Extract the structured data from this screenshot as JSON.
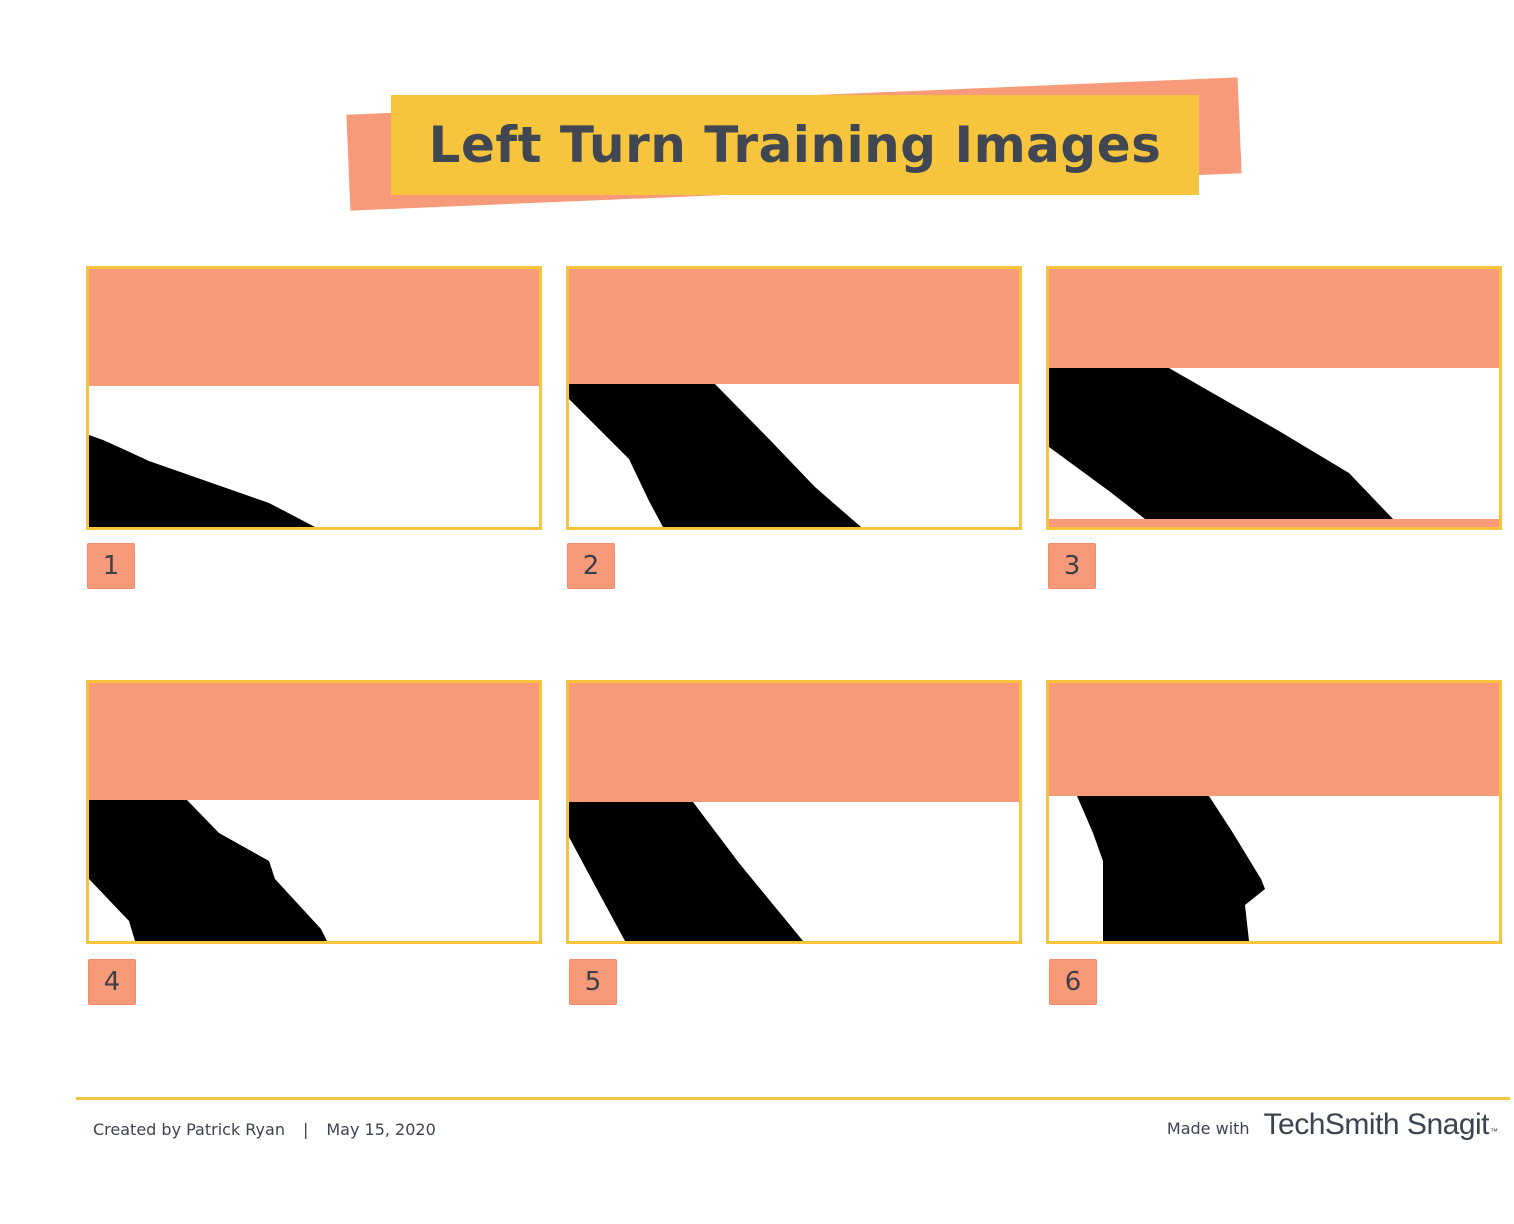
{
  "header": {
    "title": "Left Turn Training Images"
  },
  "panels": [
    {
      "label": "1"
    },
    {
      "label": "2"
    },
    {
      "label": "3"
    },
    {
      "label": "4"
    },
    {
      "label": "5"
    },
    {
      "label": "6"
    }
  ],
  "footer": {
    "author": "Created by Patrick Ryan",
    "separator": "|",
    "date": "May 15, 2020",
    "made_with": "Made with",
    "brand": "TechSmith Snagit",
    "trademark": "™"
  },
  "colors": {
    "accent_yellow": "#f6c53d",
    "accent_salmon": "#f79a79",
    "text_dark": "#404652"
  }
}
